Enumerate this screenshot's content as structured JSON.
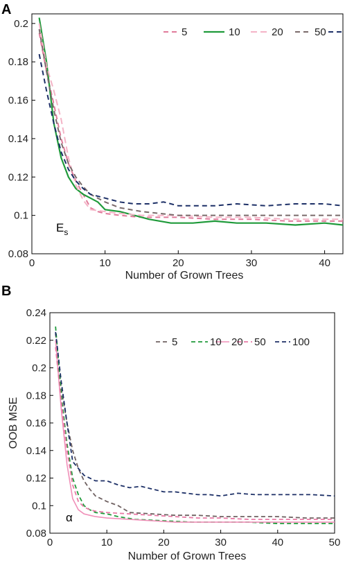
{
  "chart_data": [
    {
      "panel_label": "A",
      "type": "line",
      "xlabel": "Number of Grown Trees",
      "ylabel": "",
      "xlim": [
        0,
        42.5
      ],
      "ylim": [
        0.08,
        0.205
      ],
      "xticks": [
        0,
        10,
        20,
        30,
        40
      ],
      "yticks": [
        0.08,
        0.1,
        0.12,
        0.14,
        0.16,
        0.18,
        0.2
      ],
      "ytick_labels": [
        "0.08",
        "0.1",
        "0.12",
        "0.14",
        "0.16",
        "0.18",
        "0.2"
      ],
      "annotation": {
        "text": "E",
        "subscript": "s"
      },
      "legend_placement": "top-right",
      "grid": false,
      "series": [
        {
          "name": "5",
          "color": "#e07a9a",
          "dash": "7,5",
          "width": 2,
          "points": [
            [
              1,
              0.195
            ],
            [
              2,
              0.175
            ],
            [
              3,
              0.158
            ],
            [
              4,
              0.14
            ],
            [
              5,
              0.127
            ],
            [
              6,
              0.118
            ],
            [
              7,
              0.111
            ],
            [
              8,
              0.104
            ],
            [
              9,
              0.102
            ],
            [
              10,
              0.101
            ],
            [
              12,
              0.1
            ],
            [
              15,
              0.099
            ],
            [
              20,
              0.099
            ],
            [
              25,
              0.098
            ],
            [
              30,
              0.098
            ],
            [
              35,
              0.097
            ],
            [
              40,
              0.097
            ],
            [
              42.5,
              0.097
            ]
          ]
        },
        {
          "name": "10",
          "color": "#1f9a3a",
          "dash": "",
          "width": 2.2,
          "points": [
            [
              1,
              0.203
            ],
            [
              2,
              0.18
            ],
            [
              3,
              0.148
            ],
            [
              4,
              0.13
            ],
            [
              5,
              0.12
            ],
            [
              6,
              0.114
            ],
            [
              7,
              0.111
            ],
            [
              8,
              0.109
            ],
            [
              9,
              0.107
            ],
            [
              10,
              0.103
            ],
            [
              12,
              0.102
            ],
            [
              14,
              0.1
            ],
            [
              16,
              0.098
            ],
            [
              19,
              0.096
            ],
            [
              22,
              0.096
            ],
            [
              25,
              0.097
            ],
            [
              28,
              0.096
            ],
            [
              32,
              0.096
            ],
            [
              36,
              0.095
            ],
            [
              40,
              0.096
            ],
            [
              42.5,
              0.095
            ]
          ]
        },
        {
          "name": "20",
          "color": "#f4b3c6",
          "dash": "9,5",
          "width": 2,
          "points": [
            [
              1,
              0.2
            ],
            [
              2,
              0.178
            ],
            [
              3,
              0.165
            ],
            [
              4,
              0.15
            ],
            [
              5,
              0.13
            ],
            [
              6,
              0.116
            ],
            [
              7,
              0.108
            ],
            [
              8,
              0.103
            ],
            [
              10,
              0.102
            ],
            [
              12,
              0.101
            ],
            [
              15,
              0.1
            ],
            [
              20,
              0.1
            ],
            [
              25,
              0.099
            ],
            [
              30,
              0.099
            ],
            [
              35,
              0.098
            ],
            [
              40,
              0.098
            ],
            [
              42.5,
              0.098
            ]
          ]
        },
        {
          "name": "50",
          "color": "#7a6a6a",
          "dash": "7,5",
          "width": 2,
          "points": [
            [
              1,
              0.197
            ],
            [
              2,
              0.175
            ],
            [
              3,
              0.155
            ],
            [
              4,
              0.138
            ],
            [
              5,
              0.127
            ],
            [
              6,
              0.12
            ],
            [
              7,
              0.115
            ],
            [
              8,
              0.111
            ],
            [
              10,
              0.107
            ],
            [
              12,
              0.104
            ],
            [
              15,
              0.102
            ],
            [
              20,
              0.1
            ],
            [
              25,
              0.1
            ],
            [
              30,
              0.1
            ],
            [
              35,
              0.1
            ],
            [
              40,
              0.1
            ],
            [
              42.5,
              0.1
            ]
          ]
        },
        {
          "name": "",
          "color": "#1c2f66",
          "dash": "7,5",
          "width": 2,
          "points": [
            [
              1,
              0.184
            ],
            [
              2,
              0.165
            ],
            [
              3,
              0.148
            ],
            [
              4,
              0.133
            ],
            [
              5,
              0.124
            ],
            [
              6,
              0.118
            ],
            [
              7,
              0.114
            ],
            [
              8,
              0.111
            ],
            [
              10,
              0.109
            ],
            [
              12,
              0.107
            ],
            [
              14,
              0.106
            ],
            [
              16,
              0.106
            ],
            [
              18,
              0.107
            ],
            [
              20,
              0.105
            ],
            [
              22,
              0.105
            ],
            [
              25,
              0.105
            ],
            [
              28,
              0.106
            ],
            [
              32,
              0.105
            ],
            [
              36,
              0.106
            ],
            [
              40,
              0.106
            ],
            [
              42.5,
              0.105
            ]
          ]
        }
      ]
    },
    {
      "panel_label": "B",
      "type": "line",
      "xlabel": "Number of Grown Trees",
      "ylabel": "OOB MSE",
      "xlim": [
        0,
        50
      ],
      "ylim": [
        0.08,
        0.24
      ],
      "xticks": [
        0,
        10,
        20,
        30,
        40,
        50
      ],
      "yticks": [
        0.08,
        0.1,
        0.12,
        0.14,
        0.16,
        0.18,
        0.2,
        0.22,
        0.24
      ],
      "ytick_labels": [
        "0.08",
        "0.1",
        "0.12",
        "0.14",
        "0.16",
        "0.18",
        "0.2",
        "0.22",
        "0.24"
      ],
      "annotation": {
        "text": "α",
        "subscript": ""
      },
      "legend_placement": "top-right",
      "grid": false,
      "series": [
        {
          "name": "5",
          "color": "#6e6060",
          "dash": "6,4",
          "width": 1.8,
          "points": [
            [
              1,
              0.225
            ],
            [
              2,
              0.185
            ],
            [
              3,
              0.16
            ],
            [
              4,
              0.14
            ],
            [
              5,
              0.127
            ],
            [
              6,
              0.118
            ],
            [
              7,
              0.112
            ],
            [
              8,
              0.107
            ],
            [
              10,
              0.103
            ],
            [
              12,
              0.1
            ],
            [
              14,
              0.095
            ],
            [
              18,
              0.094
            ],
            [
              22,
              0.093
            ],
            [
              26,
              0.093
            ],
            [
              30,
              0.092
            ],
            [
              35,
              0.092
            ],
            [
              40,
              0.092
            ],
            [
              45,
              0.091
            ],
            [
              50,
              0.091
            ]
          ]
        },
        {
          "name": "10",
          "color": "#1f9a3a",
          "dash": "6,4",
          "width": 1.8,
          "points": [
            [
              1,
              0.23
            ],
            [
              2,
              0.18
            ],
            [
              3,
              0.145
            ],
            [
              4,
              0.12
            ],
            [
              5,
              0.108
            ],
            [
              6,
              0.1
            ],
            [
              7,
              0.097
            ],
            [
              8,
              0.095
            ],
            [
              10,
              0.094
            ],
            [
              12,
              0.092
            ],
            [
              15,
              0.09
            ],
            [
              20,
              0.089
            ],
            [
              25,
              0.088
            ],
            [
              30,
              0.088
            ],
            [
              35,
              0.088
            ],
            [
              40,
              0.087
            ],
            [
              45,
              0.087
            ],
            [
              50,
              0.087
            ]
          ]
        },
        {
          "name": "20",
          "color": "#f08fb8",
          "dash": "",
          "width": 1.6,
          "points": [
            [
              1,
              0.22
            ],
            [
              2,
              0.17
            ],
            [
              3,
              0.13
            ],
            [
              4,
              0.105
            ],
            [
              5,
              0.097
            ],
            [
              6,
              0.094
            ],
            [
              7,
              0.093
            ],
            [
              8,
              0.092
            ],
            [
              10,
              0.091
            ],
            [
              14,
              0.09
            ],
            [
              18,
              0.089
            ],
            [
              22,
              0.088
            ],
            [
              26,
              0.088
            ],
            [
              30,
              0.088
            ],
            [
              35,
              0.088
            ],
            [
              40,
              0.088
            ],
            [
              45,
              0.088
            ],
            [
              50,
              0.088
            ]
          ]
        },
        {
          "name": "50",
          "color": "#e87aa5",
          "dash": "6,4",
          "width": 1.8,
          "points": [
            [
              1,
              0.215
            ],
            [
              2,
              0.175
            ],
            [
              3,
              0.14
            ],
            [
              4,
              0.115
            ],
            [
              5,
              0.103
            ],
            [
              6,
              0.099
            ],
            [
              7,
              0.097
            ],
            [
              8,
              0.096
            ],
            [
              10,
              0.095
            ],
            [
              14,
              0.094
            ],
            [
              18,
              0.093
            ],
            [
              22,
              0.092
            ],
            [
              26,
              0.091
            ],
            [
              30,
              0.091
            ],
            [
              35,
              0.09
            ],
            [
              40,
              0.09
            ],
            [
              45,
              0.09
            ],
            [
              50,
              0.09
            ]
          ]
        },
        {
          "name": "100",
          "color": "#1c2f66",
          "dash": "6,4",
          "width": 1.8,
          "points": [
            [
              1,
              0.226
            ],
            [
              2,
              0.19
            ],
            [
              3,
              0.16
            ],
            [
              4,
              0.132
            ],
            [
              5,
              0.127
            ],
            [
              6,
              0.122
            ],
            [
              8,
              0.118
            ],
            [
              10,
              0.118
            ],
            [
              12,
              0.115
            ],
            [
              14,
              0.113
            ],
            [
              16,
              0.114
            ],
            [
              18,
              0.112
            ],
            [
              20,
              0.11
            ],
            [
              22,
              0.11
            ],
            [
              24,
              0.109
            ],
            [
              26,
              0.108
            ],
            [
              28,
              0.108
            ],
            [
              30,
              0.107
            ],
            [
              33,
              0.109
            ],
            [
              36,
              0.108
            ],
            [
              40,
              0.108
            ],
            [
              43,
              0.108
            ],
            [
              46,
              0.108
            ],
            [
              50,
              0.107
            ]
          ]
        }
      ]
    }
  ]
}
